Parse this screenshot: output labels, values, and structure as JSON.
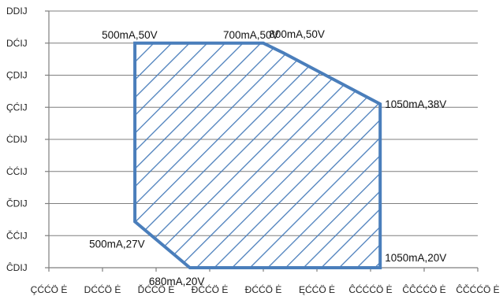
{
  "chart_data": {
    "type": "area",
    "grid": true,
    "legend": "none",
    "colors": {
      "outline": "#4a7ebb",
      "hatch": "#4a7ebb",
      "grid": "#7f7f7f"
    },
    "x_ticks": [
      {
        "label": "ÇĆĆÖ Ė",
        "value": 0
      },
      {
        "label": "DĆĆÖ Ė",
        "value": 1
      },
      {
        "label": "ĎĆĆÖ Ė",
        "value": 2
      },
      {
        "label": "ĐĆĆÖ Ė",
        "value": 3
      },
      {
        "label": "ĐĆĆÖ Ė",
        "value": 4
      },
      {
        "label": "ĘĆĆÖ Ė",
        "value": 5
      },
      {
        "label": "ĈĆĆĆÖ Ė",
        "value": 6
      },
      {
        "label": "ĈĈĆĆÖ Ė",
        "value": 7
      },
      {
        "label": "ĈČĆĆÖ Ė",
        "value": 8
      }
    ],
    "y_ticks": [
      {
        "label": "ĈDIJ",
        "value": 0
      },
      {
        "label": "ČĆIJ",
        "value": 1
      },
      {
        "label": "ČDIJ",
        "value": 2
      },
      {
        "label": "ĊĆIJ",
        "value": 3
      },
      {
        "label": "ĊDIJ",
        "value": 4
      },
      {
        "label": "ÇĆIJ",
        "value": 5
      },
      {
        "label": "ÇDIJ",
        "value": 6
      },
      {
        "label": "DĆIJ",
        "value": 7
      },
      {
        "label": "DDIJ",
        "value": 8
      }
    ],
    "region": [
      {
        "x": 1.604,
        "y": 7.0,
        "label": "500mA,50V"
      },
      {
        "x": 4.0,
        "y": 7.0,
        "label": "700mA,50V"
      },
      {
        "x": 4.373,
        "y": 6.694,
        "label": "800mA,50V"
      },
      {
        "x": 6.18,
        "y": 5.103,
        "label": "1050mA,38V"
      },
      {
        "x": 6.18,
        "y": 0.0,
        "label": "1050mA,20V"
      },
      {
        "x": 2.63,
        "y": 0.0,
        "label": "680mA,20V"
      },
      {
        "x": 1.604,
        "y": 1.439,
        "label": "500mA,27V"
      }
    ]
  }
}
